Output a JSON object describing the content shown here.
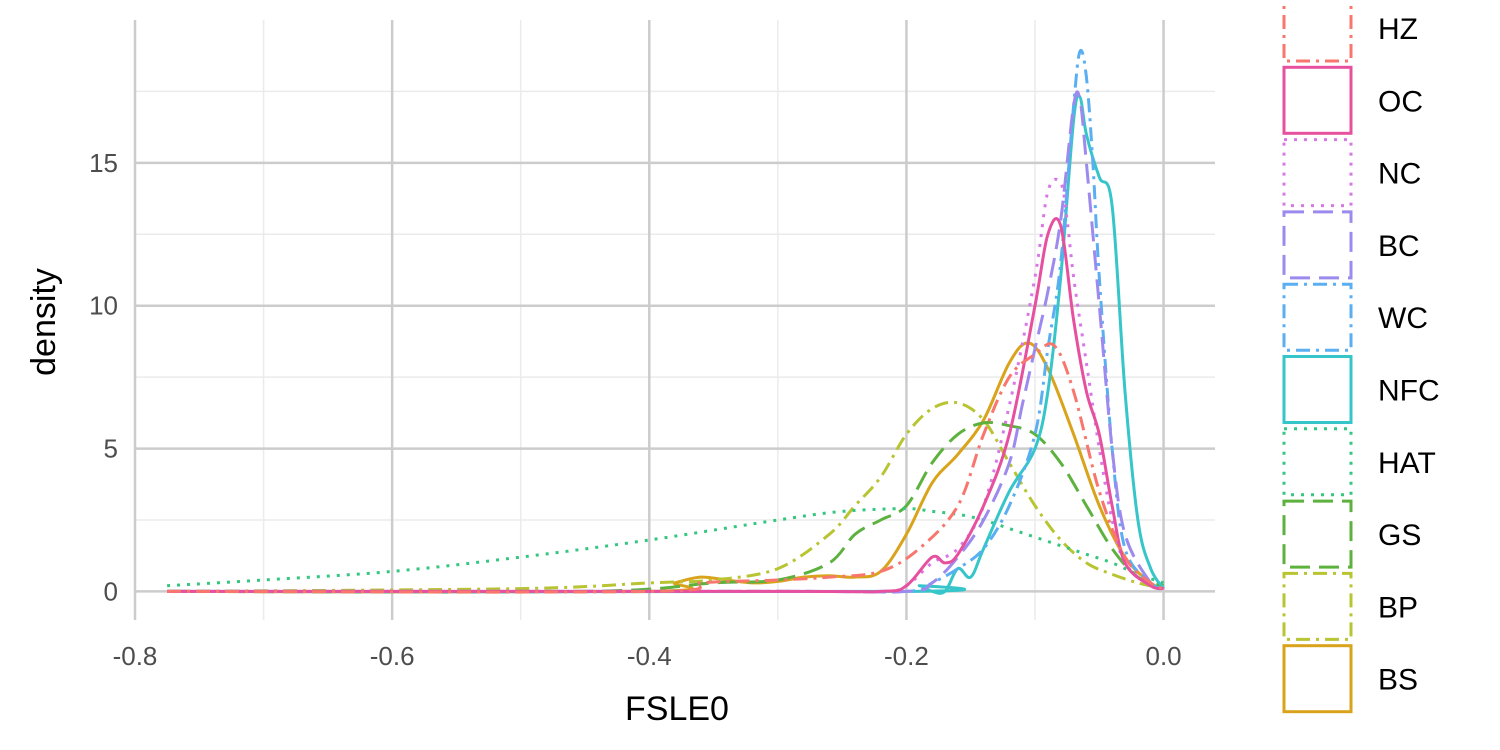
{
  "chart_data": {
    "type": "line",
    "title": "",
    "xlabel": "FSLE0",
    "ylabel": "density",
    "xlim": [
      -0.8,
      0.04
    ],
    "ylim": [
      -1,
      20
    ],
    "xticks": [
      -0.8,
      -0.6,
      -0.4,
      -0.2,
      0.0
    ],
    "xtick_labels": [
      "-0.8",
      "-0.6",
      "-0.4",
      "-0.2",
      "0.0"
    ],
    "yticks": [
      0,
      5,
      10,
      15
    ],
    "ytick_labels": [
      "0",
      "5",
      "10",
      "15"
    ],
    "grid": true,
    "legend_position": "right",
    "series": [
      {
        "name": "HZ",
        "color": "#F8766D",
        "dash": "dashdot",
        "x": [
          -0.775,
          -0.4,
          -0.36,
          -0.3,
          -0.26,
          -0.22,
          -0.19,
          -0.16,
          -0.14,
          -0.12,
          -0.1,
          -0.085,
          -0.07,
          -0.05,
          -0.03,
          -0.01,
          0.0
        ],
        "y": [
          0,
          0,
          0.3,
          0.4,
          0.5,
          0.7,
          1.5,
          3.0,
          5.5,
          7.5,
          8.3,
          8.6,
          7.0,
          3.5,
          1.2,
          0.3,
          0.1
        ]
      },
      {
        "name": "OC",
        "color": "#E7509F",
        "dash": "solid",
        "x": [
          -0.775,
          -0.3,
          -0.22,
          -0.2,
          -0.18,
          -0.17,
          -0.16,
          -0.14,
          -0.12,
          -0.1,
          -0.09,
          -0.08,
          -0.07,
          -0.06,
          -0.05,
          -0.04,
          -0.03,
          -0.01,
          0.0
        ],
        "y": [
          0,
          0,
          0,
          0.2,
          1.2,
          1.0,
          1.3,
          3.0,
          5.5,
          10.0,
          12.5,
          12.8,
          9.5,
          7.0,
          5.5,
          3.0,
          1.0,
          0.2,
          0.1
        ]
      },
      {
        "name": "NC",
        "color": "#D877E6",
        "dash": "dotted",
        "x": [
          -0.775,
          -0.3,
          -0.22,
          -0.2,
          -0.18,
          -0.16,
          -0.14,
          -0.12,
          -0.1,
          -0.09,
          -0.08,
          -0.075,
          -0.07,
          -0.06,
          -0.05,
          -0.04,
          -0.03,
          -0.01,
          0.0
        ],
        "y": [
          0,
          0,
          0,
          0.2,
          1.0,
          1.5,
          3.0,
          6.5,
          11.0,
          14.0,
          14.3,
          13.0,
          11.0,
          8.0,
          5.0,
          2.5,
          1.0,
          0.2,
          0.1
        ]
      },
      {
        "name": "BC",
        "color": "#9D8AEE",
        "dash": "longdash",
        "x": [
          -0.775,
          -0.3,
          -0.2,
          -0.18,
          -0.16,
          -0.14,
          -0.12,
          -0.11,
          -0.1,
          -0.09,
          -0.08,
          -0.07,
          -0.065,
          -0.06,
          -0.05,
          -0.04,
          -0.03,
          -0.01,
          0.0
        ],
        "y": [
          0,
          0,
          0,
          0.3,
          1.2,
          2.5,
          4.5,
          6.5,
          8.5,
          10.5,
          13.0,
          17.0,
          17.2,
          15.0,
          10.0,
          5.0,
          2.0,
          0.3,
          0.1
        ]
      },
      {
        "name": "WC",
        "color": "#5AAEF2",
        "dash": "dashdot",
        "x": [
          -0.775,
          -0.3,
          -0.2,
          -0.18,
          -0.16,
          -0.14,
          -0.12,
          -0.1,
          -0.09,
          -0.08,
          -0.07,
          -0.065,
          -0.06,
          -0.055,
          -0.05,
          -0.04,
          -0.03,
          -0.01,
          0.0
        ],
        "y": [
          0,
          0,
          0,
          0.3,
          0.8,
          1.5,
          3.0,
          5.5,
          8.5,
          11.5,
          17.0,
          18.9,
          18.0,
          15.0,
          11.0,
          5.0,
          1.5,
          0.3,
          0.1
        ]
      },
      {
        "name": "NFC",
        "color": "#36C5C9",
        "dash": "solid",
        "x": [
          -0.775,
          -0.2,
          -0.19,
          -0.18,
          -0.17,
          -0.16,
          -0.15,
          -0.14,
          -0.12,
          -0.1,
          -0.09,
          -0.08,
          -0.07,
          -0.065,
          -0.06,
          -0.05,
          -0.04,
          -0.03,
          -0.02,
          -0.01,
          0.0
        ],
        "y": [
          0,
          0,
          0.2,
          0,
          0,
          0.8,
          0.5,
          1.5,
          3.5,
          5.0,
          7.0,
          11.0,
          16.5,
          17.3,
          16.0,
          14.5,
          13.5,
          7.0,
          2.5,
          0.8,
          0.1
        ]
      },
      {
        "name": "HAT",
        "color": "#35C67F",
        "dash": "dotted",
        "x": [
          -0.775,
          -0.7,
          -0.6,
          -0.5,
          -0.4,
          -0.3,
          -0.25,
          -0.2,
          -0.18,
          -0.16,
          -0.14,
          -0.12,
          -0.1,
          -0.08,
          -0.06,
          -0.04,
          -0.02,
          0.0
        ],
        "y": [
          0.2,
          0.4,
          0.7,
          1.2,
          1.8,
          2.5,
          2.8,
          2.9,
          2.8,
          2.7,
          2.5,
          2.2,
          1.9,
          1.6,
          1.3,
          1.0,
          0.6,
          0.3
        ]
      },
      {
        "name": "GS",
        "color": "#5DB23F",
        "dash": "longdash",
        "x": [
          -0.775,
          -0.45,
          -0.35,
          -0.3,
          -0.26,
          -0.24,
          -0.22,
          -0.2,
          -0.18,
          -0.16,
          -0.14,
          -0.12,
          -0.1,
          -0.08,
          -0.06,
          -0.04,
          -0.02,
          0.0
        ],
        "y": [
          0,
          0,
          0.3,
          0.4,
          1.0,
          2.0,
          2.5,
          3.0,
          4.5,
          5.5,
          5.9,
          5.8,
          5.5,
          4.5,
          3.0,
          1.5,
          0.5,
          0.2
        ]
      },
      {
        "name": "BP",
        "color": "#B8C431",
        "dash": "dashdot",
        "x": [
          -0.775,
          -0.5,
          -0.4,
          -0.35,
          -0.3,
          -0.26,
          -0.24,
          -0.22,
          -0.2,
          -0.18,
          -0.16,
          -0.14,
          -0.12,
          -0.1,
          -0.08,
          -0.06,
          -0.04,
          -0.02,
          0.0
        ],
        "y": [
          0,
          0.1,
          0.3,
          0.4,
          0.8,
          2.0,
          3.0,
          4.0,
          5.5,
          6.4,
          6.6,
          6.0,
          4.5,
          3.0,
          1.8,
          1.0,
          0.6,
          0.3,
          0.1
        ]
      },
      {
        "name": "BS",
        "color": "#D9A31B",
        "dash": "solid",
        "x": [
          -0.775,
          -0.4,
          -0.38,
          -0.36,
          -0.34,
          -0.32,
          -0.3,
          -0.28,
          -0.26,
          -0.24,
          -0.22,
          -0.2,
          -0.18,
          -0.16,
          -0.14,
          -0.12,
          -0.105,
          -0.09,
          -0.07,
          -0.05,
          -0.03,
          -0.01,
          0.0
        ],
        "y": [
          0,
          0,
          0.3,
          0.5,
          0.4,
          0.3,
          0.35,
          0.5,
          0.55,
          0.5,
          0.7,
          2.0,
          3.8,
          4.8,
          6.0,
          8.0,
          8.7,
          7.8,
          5.5,
          3.0,
          1.2,
          0.3,
          0.1
        ]
      }
    ]
  }
}
